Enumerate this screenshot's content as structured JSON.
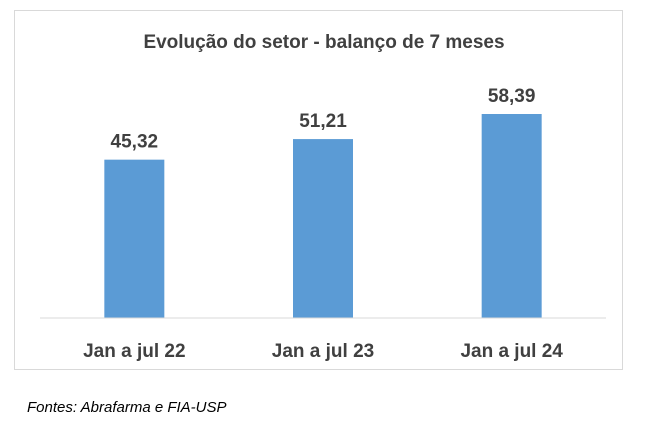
{
  "chart_data": {
    "type": "bar",
    "title": "Evolução do setor - balanço de 7 meses",
    "categories": [
      "Jan a jul 22",
      "Jan a jul 23",
      "Jan a jul 24"
    ],
    "values": [
      45.32,
      51.21,
      58.39
    ],
    "data_labels": [
      "45,32",
      "51,21",
      "58,39"
    ],
    "xlabel": "",
    "ylabel": "",
    "ylim": [
      0,
      70
    ],
    "grid": false,
    "legend": "none",
    "colors": {
      "bar": "#5b9bd5",
      "axis": "#d9d9d9",
      "text": "#404040"
    }
  },
  "source": "Fontes: Abrafarma e FIA-USP"
}
